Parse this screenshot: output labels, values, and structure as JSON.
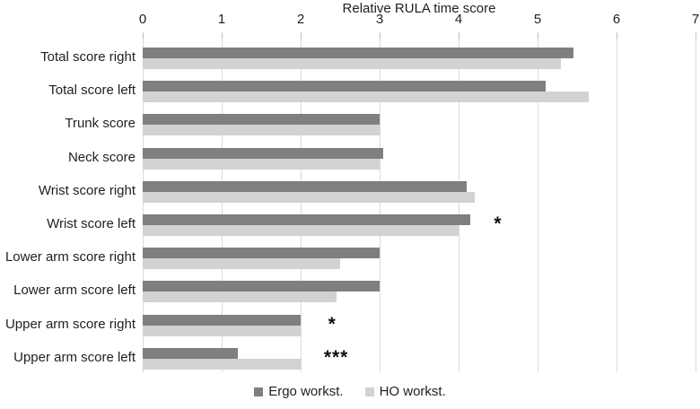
{
  "chart_data": {
    "type": "bar",
    "orientation": "horizontal",
    "title": "Relative RULA time score",
    "xlabel": "Relative RULA time score",
    "xlim": [
      0,
      7
    ],
    "xticks": [
      "0",
      "1",
      "2",
      "3",
      "4",
      "5",
      "6",
      "7"
    ],
    "axis_position": "top",
    "grid": true,
    "legend_position": "bottom",
    "categories": [
      "Total score right",
      "Total score left",
      "Trunk score",
      "Neck score",
      "Wrist score right",
      "Wrist score left",
      "Lower arm score right",
      "Lower arm score left",
      "Upper arm score right",
      "Upper arm score left"
    ],
    "series": [
      {
        "name": "Ergo workst.",
        "color": "#7f7f7f",
        "values": [
          5.45,
          5.1,
          3.0,
          3.05,
          4.1,
          4.15,
          3.0,
          3.0,
          2.0,
          1.2
        ]
      },
      {
        "name": "HO workst.",
        "color": "#d2d2d2",
        "values": [
          5.3,
          5.65,
          3.0,
          3.0,
          4.2,
          4.0,
          2.5,
          2.45,
          2.0,
          2.0
        ]
      }
    ],
    "annotations": [
      {
        "row": 5,
        "text": "*",
        "x": 4.5
      },
      {
        "row": 8,
        "text": "*",
        "x": 2.4
      },
      {
        "row": 9,
        "text": "***",
        "x": 2.45
      }
    ],
    "colors": {
      "gridline": "#dadada",
      "tick_mark": "#bfbfbf",
      "text": "#1f1f1f"
    }
  }
}
